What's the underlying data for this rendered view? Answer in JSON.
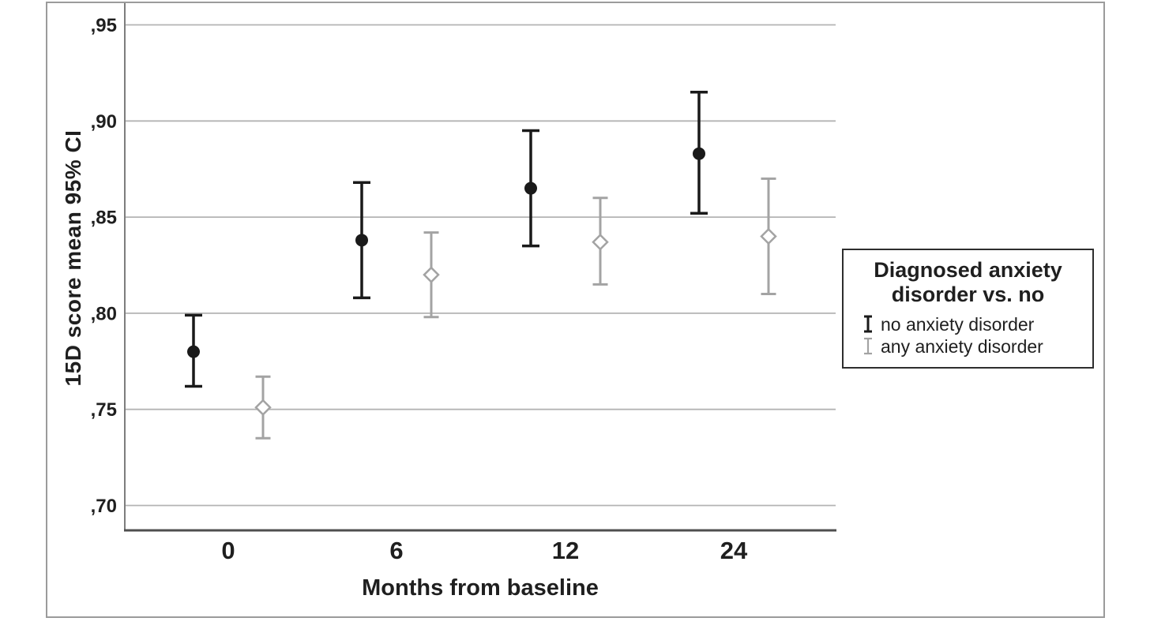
{
  "figure": {
    "background": "#ffffff",
    "border_color": "#9b9b9b"
  },
  "chart_data": {
    "type": "errorbar",
    "title": "",
    "xlabel": "Months from baseline",
    "ylabel": "15D score mean 95% CI",
    "categories": [
      "0",
      "6",
      "12",
      "24"
    ],
    "y_ticks": [
      0.7,
      0.75,
      0.8,
      0.85,
      0.9,
      0.95
    ],
    "y_tick_labels": [
      ",70",
      ",75",
      ",80",
      ",85",
      ",90",
      ",95"
    ],
    "ylim": [
      0.687,
      0.961
    ],
    "grid": "horizontal",
    "gridline_color": "#b4b4b4",
    "axis_line_color": "#7d7d7d",
    "baseline_color": "#4f4f4f",
    "series": [
      {
        "name": "no anxiety disorder",
        "color": "#1a1a1a",
        "marker": "filled-circle",
        "means": [
          0.78,
          0.838,
          0.865,
          0.883
        ],
        "ci_low": [
          0.762,
          0.808,
          0.835,
          0.852
        ],
        "ci_high": [
          0.799,
          0.868,
          0.895,
          0.915
        ]
      },
      {
        "name": "any anxiety disorder",
        "color": "#a3a3a3",
        "marker": "open-diamond",
        "means": [
          0.751,
          0.82,
          0.837,
          0.84
        ],
        "ci_low": [
          0.735,
          0.798,
          0.815,
          0.81
        ],
        "ci_high": [
          0.767,
          0.842,
          0.86,
          0.87
        ]
      }
    ],
    "legend": {
      "title": "Diagnosed anxiety disorder vs. no",
      "title_line1": "Diagnosed anxiety",
      "title_line2": "disorder vs. no",
      "position": "right"
    }
  }
}
